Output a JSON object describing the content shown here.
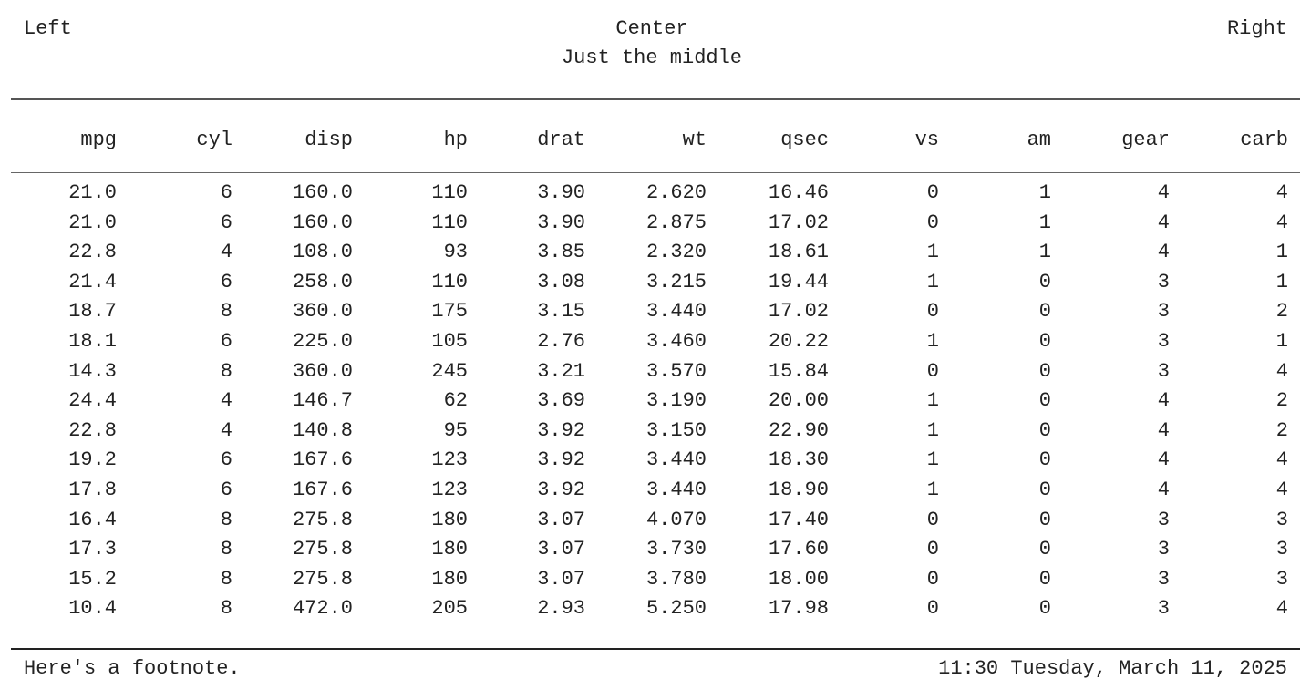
{
  "header": {
    "left": "Left",
    "center": "Center",
    "right": "Right",
    "subtitle": "Just the middle"
  },
  "table": {
    "columns": [
      "mpg",
      "cyl",
      "disp",
      "hp",
      "drat",
      "wt",
      "qsec",
      "vs",
      "am",
      "gear",
      "carb"
    ],
    "rows": [
      [
        "21.0",
        "6",
        "160.0",
        "110",
        "3.90",
        "2.620",
        "16.46",
        "0",
        "1",
        "4",
        "4"
      ],
      [
        "21.0",
        "6",
        "160.0",
        "110",
        "3.90",
        "2.875",
        "17.02",
        "0",
        "1",
        "4",
        "4"
      ],
      [
        "22.8",
        "4",
        "108.0",
        "93",
        "3.85",
        "2.320",
        "18.61",
        "1",
        "1",
        "4",
        "1"
      ],
      [
        "21.4",
        "6",
        "258.0",
        "110",
        "3.08",
        "3.215",
        "19.44",
        "1",
        "0",
        "3",
        "1"
      ],
      [
        "18.7",
        "8",
        "360.0",
        "175",
        "3.15",
        "3.440",
        "17.02",
        "0",
        "0",
        "3",
        "2"
      ],
      [
        "18.1",
        "6",
        "225.0",
        "105",
        "2.76",
        "3.460",
        "20.22",
        "1",
        "0",
        "3",
        "1"
      ],
      [
        "14.3",
        "8",
        "360.0",
        "245",
        "3.21",
        "3.570",
        "15.84",
        "0",
        "0",
        "3",
        "4"
      ],
      [
        "24.4",
        "4",
        "146.7",
        "62",
        "3.69",
        "3.190",
        "20.00",
        "1",
        "0",
        "4",
        "2"
      ],
      [
        "22.8",
        "4",
        "140.8",
        "95",
        "3.92",
        "3.150",
        "22.90",
        "1",
        "0",
        "4",
        "2"
      ],
      [
        "19.2",
        "6",
        "167.6",
        "123",
        "3.92",
        "3.440",
        "18.30",
        "1",
        "0",
        "4",
        "4"
      ],
      [
        "17.8",
        "6",
        "167.6",
        "123",
        "3.92",
        "3.440",
        "18.90",
        "1",
        "0",
        "4",
        "4"
      ],
      [
        "16.4",
        "8",
        "275.8",
        "180",
        "3.07",
        "4.070",
        "17.40",
        "0",
        "0",
        "3",
        "3"
      ],
      [
        "17.3",
        "8",
        "275.8",
        "180",
        "3.07",
        "3.730",
        "17.60",
        "0",
        "0",
        "3",
        "3"
      ],
      [
        "15.2",
        "8",
        "275.8",
        "180",
        "3.07",
        "3.780",
        "18.00",
        "0",
        "0",
        "3",
        "3"
      ],
      [
        "10.4",
        "8",
        "472.0",
        "205",
        "2.93",
        "5.250",
        "17.98",
        "0",
        "0",
        "3",
        "4"
      ]
    ]
  },
  "footer": {
    "note": "Here's a footnote.",
    "timestamp": "11:30 Tuesday, March 11, 2025"
  }
}
